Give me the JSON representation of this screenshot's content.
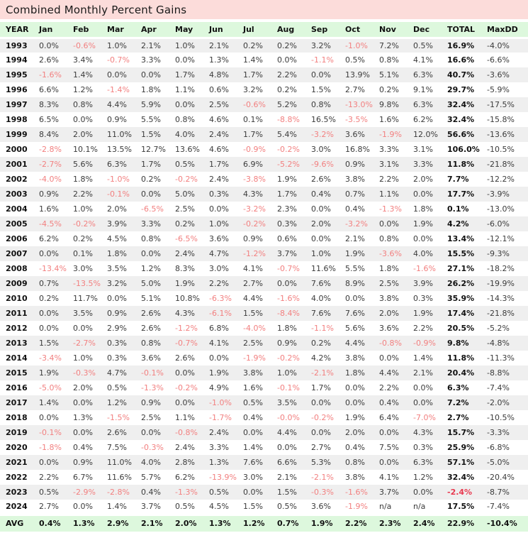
{
  "title": "Combined Monthly Percent Gains",
  "colors": {
    "title_bg": "#fcdcda",
    "header_bg": "#ddf8dd",
    "stripe_bg": "#efefef",
    "negative_text": "#f28080",
    "negative_total_text": "#e8394f",
    "text": "#3b3b3b"
  },
  "chart_data": {
    "type": "table",
    "title": "Combined Monthly Percent Gains",
    "columns": [
      "YEAR",
      "Jan",
      "Feb",
      "Mar",
      "Apr",
      "May",
      "Jun",
      "Jul",
      "Aug",
      "Sep",
      "Oct",
      "Nov",
      "Dec",
      "TOTAL",
      "MaxDD"
    ],
    "rows": [
      [
        "1993",
        "0.0%",
        "-0.6%",
        "1.0%",
        "2.1%",
        "1.0%",
        "2.1%",
        "0.2%",
        "0.2%",
        "3.2%",
        "-1.0%",
        "7.2%",
        "0.5%",
        "16.9%",
        "-4.0%"
      ],
      [
        "1994",
        "2.6%",
        "3.4%",
        "-0.7%",
        "3.3%",
        "0.0%",
        "1.3%",
        "1.4%",
        "0.0%",
        "-1.1%",
        "0.5%",
        "0.8%",
        "4.1%",
        "16.6%",
        "-6.6%"
      ],
      [
        "1995",
        "-1.6%",
        "1.4%",
        "0.0%",
        "0.0%",
        "1.7%",
        "4.8%",
        "1.7%",
        "2.2%",
        "0.0%",
        "13.9%",
        "5.1%",
        "6.3%",
        "40.7%",
        "-3.6%"
      ],
      [
        "1996",
        "6.6%",
        "1.2%",
        "-1.4%",
        "1.8%",
        "1.1%",
        "0.6%",
        "3.2%",
        "0.2%",
        "1.5%",
        "2.7%",
        "0.2%",
        "9.1%",
        "29.7%",
        "-5.9%"
      ],
      [
        "1997",
        "8.3%",
        "0.8%",
        "4.4%",
        "5.9%",
        "0.0%",
        "2.5%",
        "-0.6%",
        "5.2%",
        "0.8%",
        "-13.0%",
        "9.8%",
        "6.3%",
        "32.4%",
        "-17.5%"
      ],
      [
        "1998",
        "6.5%",
        "0.0%",
        "0.9%",
        "5.5%",
        "0.8%",
        "4.6%",
        "0.1%",
        "-8.8%",
        "16.5%",
        "-3.5%",
        "1.6%",
        "6.2%",
        "32.4%",
        "-15.8%"
      ],
      [
        "1999",
        "8.4%",
        "2.0%",
        "11.0%",
        "1.5%",
        "4.0%",
        "2.4%",
        "1.7%",
        "5.4%",
        "-3.2%",
        "3.6%",
        "-1.9%",
        "12.0%",
        "56.6%",
        "-13.6%"
      ],
      [
        "2000",
        "-2.8%",
        "10.1%",
        "13.5%",
        "12.7%",
        "13.6%",
        "4.6%",
        "-0.9%",
        "-0.2%",
        "3.0%",
        "16.8%",
        "3.3%",
        "3.1%",
        "106.0%",
        "-10.5%"
      ],
      [
        "2001",
        "-2.7%",
        "5.6%",
        "6.3%",
        "1.7%",
        "0.5%",
        "1.7%",
        "6.9%",
        "-5.2%",
        "-9.6%",
        "0.9%",
        "3.1%",
        "3.3%",
        "11.8%",
        "-21.8%"
      ],
      [
        "2002",
        "-4.0%",
        "1.8%",
        "-1.0%",
        "0.2%",
        "-0.2%",
        "2.4%",
        "-3.8%",
        "1.9%",
        "2.6%",
        "3.8%",
        "2.2%",
        "2.0%",
        "7.7%",
        "-12.2%"
      ],
      [
        "2003",
        "0.9%",
        "2.2%",
        "-0.1%",
        "0.0%",
        "5.0%",
        "0.3%",
        "4.3%",
        "1.7%",
        "0.4%",
        "0.7%",
        "1.1%",
        "0.0%",
        "17.7%",
        "-3.9%"
      ],
      [
        "2004",
        "1.6%",
        "1.0%",
        "2.0%",
        "-6.5%",
        "2.5%",
        "0.0%",
        "-3.2%",
        "2.3%",
        "0.0%",
        "0.4%",
        "-1.3%",
        "1.8%",
        "0.1%",
        "-13.0%"
      ],
      [
        "2005",
        "-4.5%",
        "-0.2%",
        "3.9%",
        "3.3%",
        "0.2%",
        "1.0%",
        "-0.2%",
        "0.3%",
        "2.0%",
        "-3.2%",
        "0.0%",
        "1.9%",
        "4.2%",
        "-6.0%"
      ],
      [
        "2006",
        "6.2%",
        "0.2%",
        "4.5%",
        "0.8%",
        "-6.5%",
        "3.6%",
        "0.9%",
        "0.6%",
        "0.0%",
        "2.1%",
        "0.8%",
        "0.0%",
        "13.4%",
        "-12.1%"
      ],
      [
        "2007",
        "0.0%",
        "0.1%",
        "1.8%",
        "0.0%",
        "2.4%",
        "4.7%",
        "-1.2%",
        "3.7%",
        "1.0%",
        "1.9%",
        "-3.6%",
        "4.0%",
        "15.5%",
        "-9.3%"
      ],
      [
        "2008",
        "-13.4%",
        "3.0%",
        "3.5%",
        "1.2%",
        "8.3%",
        "3.0%",
        "4.1%",
        "-0.7%",
        "11.6%",
        "5.5%",
        "1.8%",
        "-1.6%",
        "27.1%",
        "-18.2%"
      ],
      [
        "2009",
        "0.7%",
        "-13.5%",
        "3.2%",
        "5.0%",
        "1.9%",
        "2.2%",
        "2.7%",
        "0.0%",
        "7.6%",
        "8.9%",
        "2.5%",
        "3.9%",
        "26.2%",
        "-19.9%"
      ],
      [
        "2010",
        "0.2%",
        "11.7%",
        "0.0%",
        "5.1%",
        "10.8%",
        "-6.3%",
        "4.4%",
        "-1.6%",
        "4.0%",
        "0.0%",
        "3.8%",
        "0.3%",
        "35.9%",
        "-14.3%"
      ],
      [
        "2011",
        "0.0%",
        "3.5%",
        "0.9%",
        "2.6%",
        "4.3%",
        "-6.1%",
        "1.5%",
        "-8.4%",
        "7.6%",
        "7.6%",
        "2.0%",
        "1.9%",
        "17.4%",
        "-21.8%"
      ],
      [
        "2012",
        "0.0%",
        "0.0%",
        "2.9%",
        "2.6%",
        "-1.2%",
        "6.8%",
        "-4.0%",
        "1.8%",
        "-1.1%",
        "5.6%",
        "3.6%",
        "2.2%",
        "20.5%",
        "-5.2%"
      ],
      [
        "2013",
        "1.5%",
        "-2.7%",
        "0.3%",
        "0.8%",
        "-0.7%",
        "4.1%",
        "2.5%",
        "0.9%",
        "0.2%",
        "4.4%",
        "-0.8%",
        "-0.9%",
        "9.8%",
        "-4.8%"
      ],
      [
        "2014",
        "-3.4%",
        "1.0%",
        "0.3%",
        "3.6%",
        "2.6%",
        "0.0%",
        "-1.9%",
        "-0.2%",
        "4.2%",
        "3.8%",
        "0.0%",
        "1.4%",
        "11.8%",
        "-11.3%"
      ],
      [
        "2015",
        "1.9%",
        "-0.3%",
        "4.7%",
        "-0.1%",
        "0.0%",
        "1.9%",
        "3.8%",
        "1.0%",
        "-2.1%",
        "1.8%",
        "4.4%",
        "2.1%",
        "20.4%",
        "-8.8%"
      ],
      [
        "2016",
        "-5.0%",
        "2.0%",
        "0.5%",
        "-1.3%",
        "-0.2%",
        "4.9%",
        "1.6%",
        "-0.1%",
        "1.7%",
        "0.0%",
        "2.2%",
        "0.0%",
        "6.3%",
        "-7.4%"
      ],
      [
        "2017",
        "1.4%",
        "0.0%",
        "1.2%",
        "0.9%",
        "0.0%",
        "-1.0%",
        "0.5%",
        "3.5%",
        "0.0%",
        "0.0%",
        "0.4%",
        "0.0%",
        "7.2%",
        "-2.0%"
      ],
      [
        "2018",
        "0.0%",
        "1.3%",
        "-1.5%",
        "2.5%",
        "1.1%",
        "-1.7%",
        "0.4%",
        "-0.0%",
        "-0.2%",
        "1.9%",
        "6.4%",
        "-7.0%",
        "2.7%",
        "-10.5%"
      ],
      [
        "2019",
        "-0.1%",
        "0.0%",
        "2.6%",
        "0.0%",
        "-0.8%",
        "2.4%",
        "0.0%",
        "4.4%",
        "0.0%",
        "2.0%",
        "0.0%",
        "4.3%",
        "15.7%",
        "-3.3%"
      ],
      [
        "2020",
        "-1.8%",
        "0.4%",
        "7.5%",
        "-0.3%",
        "2.4%",
        "3.3%",
        "1.4%",
        "0.0%",
        "2.7%",
        "0.4%",
        "7.5%",
        "0.3%",
        "25.9%",
        "-6.8%"
      ],
      [
        "2021",
        "0.0%",
        "0.9%",
        "11.0%",
        "4.0%",
        "2.8%",
        "1.3%",
        "7.6%",
        "6.6%",
        "5.3%",
        "0.8%",
        "0.0%",
        "6.3%",
        "57.1%",
        "-5.0%"
      ],
      [
        "2022",
        "2.2%",
        "6.7%",
        "11.6%",
        "5.7%",
        "6.2%",
        "-13.9%",
        "3.0%",
        "2.1%",
        "-2.1%",
        "3.8%",
        "4.1%",
        "1.2%",
        "32.4%",
        "-20.4%"
      ],
      [
        "2023",
        "0.5%",
        "-2.9%",
        "-2.8%",
        "0.4%",
        "-1.3%",
        "0.5%",
        "0.0%",
        "1.5%",
        "-0.3%",
        "-1.6%",
        "3.7%",
        "0.0%",
        "-2.4%",
        "-8.7%"
      ],
      [
        "2024",
        "2.7%",
        "0.0%",
        "1.4%",
        "3.7%",
        "0.5%",
        "4.5%",
        "1.5%",
        "0.5%",
        "3.6%",
        "-1.9%",
        "n/a",
        "n/a",
        "17.5%",
        "-7.4%"
      ]
    ],
    "avg_row": [
      "AVG",
      "0.4%",
      "1.3%",
      "2.9%",
      "2.1%",
      "2.0%",
      "1.3%",
      "1.2%",
      "0.7%",
      "1.9%",
      "2.2%",
      "2.3%",
      "2.4%",
      "22.9%",
      "-10.4%"
    ]
  }
}
